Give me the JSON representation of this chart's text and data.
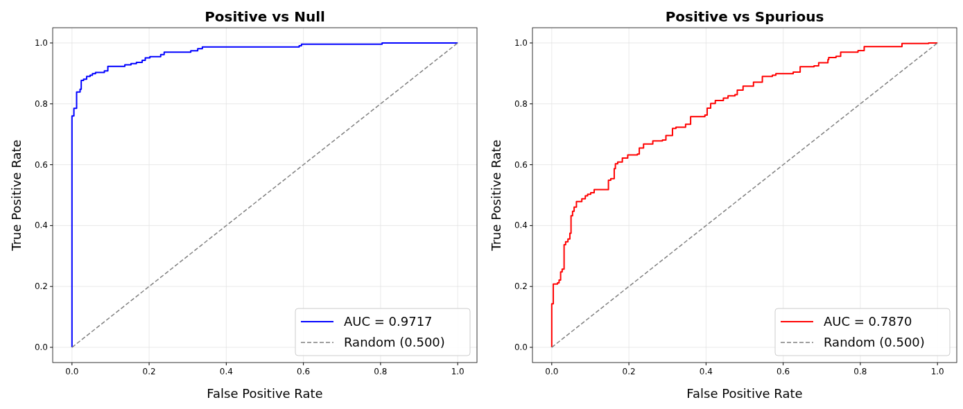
{
  "chart_data": [
    {
      "type": "step",
      "title": "Positive vs Null",
      "xlabel": "False Positive Rate",
      "ylabel": "True Positive Rate",
      "xlim": [
        -0.05,
        1.05
      ],
      "ylim": [
        -0.05,
        1.05
      ],
      "xticks": [
        {
          "value": 0,
          "label": "0.0"
        },
        {
          "value": 0.2,
          "label": "0.2"
        },
        {
          "value": 0.4,
          "label": "0.4"
        },
        {
          "value": 0.6,
          "label": "0.6"
        },
        {
          "value": 0.8,
          "label": "0.8"
        },
        {
          "value": 1,
          "label": "1.0"
        }
      ],
      "yticks": [
        {
          "value": 0,
          "label": "0.0"
        },
        {
          "value": 0.2,
          "label": "0.2"
        },
        {
          "value": 0.4,
          "label": "0.4"
        },
        {
          "value": 0.6,
          "label": "0.6"
        },
        {
          "value": 0.8,
          "label": "0.8"
        },
        {
          "value": 1,
          "label": "1.0"
        }
      ],
      "grid": true,
      "legend": "bottom right",
      "series": [
        {
          "name": "AUC = 0.9717",
          "color": "#0000ff",
          "x": [
            0,
            0,
            0.005,
            0.012,
            0.021,
            0.024,
            0.03,
            0.038,
            0.047,
            0.053,
            0.061,
            0.084,
            0.093,
            0.137,
            0.153,
            0.167,
            0.182,
            0.19,
            0.202,
            0.23,
            0.239,
            0.308,
            0.326,
            0.338,
            0.589,
            0.595,
            0.804,
            1
          ],
          "values": [
            0,
            0.76,
            0.785,
            0.839,
            0.848,
            0.877,
            0.881,
            0.89,
            0.894,
            0.899,
            0.903,
            0.908,
            0.923,
            0.928,
            0.932,
            0.936,
            0.943,
            0.951,
            0.955,
            0.962,
            0.97,
            0.974,
            0.981,
            0.987,
            0.991,
            0.996,
            1,
            1
          ]
        },
        {
          "type": "line",
          "name": "Random (0.500)",
          "color": "#808080",
          "line_style": "dashed",
          "x": [
            0,
            1
          ],
          "values": [
            0,
            1
          ]
        }
      ]
    },
    {
      "type": "step",
      "title": "Positive vs Spurious",
      "xlabel": "False Positive Rate",
      "ylabel": "True Positive Rate",
      "xlim": [
        -0.05,
        1.05
      ],
      "ylim": [
        -0.05,
        1.05
      ],
      "xticks": [
        {
          "value": 0,
          "label": "0.0"
        },
        {
          "value": 0.2,
          "label": "0.2"
        },
        {
          "value": 0.4,
          "label": "0.4"
        },
        {
          "value": 0.6,
          "label": "0.6"
        },
        {
          "value": 0.8,
          "label": "0.8"
        },
        {
          "value": 1,
          "label": "1.0"
        }
      ],
      "yticks": [
        {
          "value": 0,
          "label": "0.0"
        },
        {
          "value": 0.2,
          "label": "0.2"
        },
        {
          "value": 0.4,
          "label": "0.4"
        },
        {
          "value": 0.6,
          "label": "0.6"
        },
        {
          "value": 0.8,
          "label": "0.8"
        },
        {
          "value": 1,
          "label": "1.0"
        }
      ],
      "grid": true,
      "legend": "bottom right",
      "series": [
        {
          "name": "AUC = 0.7870",
          "color": "#ff0000",
          "x": [
            0,
            0,
            0.004,
            0.015,
            0.019,
            0.023,
            0.027,
            0.032,
            0.036,
            0.042,
            0.047,
            0.05,
            0.054,
            0.058,
            0.064,
            0.078,
            0.087,
            0.093,
            0.101,
            0.11,
            0.147,
            0.153,
            0.162,
            0.165,
            0.171,
            0.183,
            0.197,
            0.222,
            0.227,
            0.238,
            0.262,
            0.287,
            0.296,
            0.313,
            0.322,
            0.347,
            0.36,
            0.397,
            0.403,
            0.412,
            0.424,
            0.445,
            0.457,
            0.475,
            0.481,
            0.496,
            0.523,
            0.546,
            0.572,
            0.581,
            0.626,
            0.644,
            0.68,
            0.692,
            0.716,
            0.718,
            0.737,
            0.749,
            0.794,
            0.81,
            0.908,
            0.977,
            1
          ],
          "values": [
            0,
            0.143,
            0.208,
            0.212,
            0.221,
            0.248,
            0.257,
            0.337,
            0.347,
            0.356,
            0.375,
            0.432,
            0.447,
            0.461,
            0.479,
            0.488,
            0.498,
            0.503,
            0.508,
            0.518,
            0.549,
            0.554,
            0.587,
            0.603,
            0.609,
            0.622,
            0.632,
            0.635,
            0.655,
            0.668,
            0.678,
            0.681,
            0.696,
            0.719,
            0.723,
            0.733,
            0.758,
            0.763,
            0.786,
            0.801,
            0.811,
            0.819,
            0.826,
            0.83,
            0.845,
            0.858,
            0.871,
            0.89,
            0.894,
            0.899,
            0.904,
            0.922,
            0.925,
            0.935,
            0.945,
            0.952,
            0.956,
            0.97,
            0.975,
            0.988,
            0.998,
            1,
            1
          ]
        },
        {
          "type": "line",
          "name": "Random (0.500)",
          "color": "#808080",
          "line_style": "dashed",
          "x": [
            0,
            1
          ],
          "values": [
            0,
            1
          ]
        }
      ]
    }
  ]
}
